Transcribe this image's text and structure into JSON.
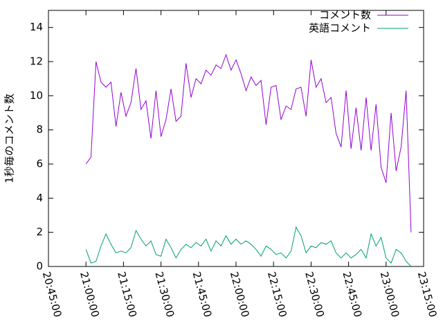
{
  "chart_data": {
    "type": "line",
    "ylabel": "1秒毎のコメント数",
    "x": [
      "21:00:00",
      "21:02:00",
      "21:04:00",
      "21:06:00",
      "21:08:00",
      "21:10:00",
      "21:12:00",
      "21:14:00",
      "21:16:00",
      "21:18:00",
      "21:20:00",
      "21:22:00",
      "21:24:00",
      "21:26:00",
      "21:28:00",
      "21:30:00",
      "21:32:00",
      "21:34:00",
      "21:36:00",
      "21:38:00",
      "21:40:00",
      "21:42:00",
      "21:44:00",
      "21:46:00",
      "21:48:00",
      "21:50:00",
      "21:52:00",
      "21:54:00",
      "21:56:00",
      "21:58:00",
      "22:00:00",
      "22:02:00",
      "22:04:00",
      "22:06:00",
      "22:08:00",
      "22:10:00",
      "22:12:00",
      "22:14:00",
      "22:16:00",
      "22:18:00",
      "22:20:00",
      "22:22:00",
      "22:24:00",
      "22:26:00",
      "22:28:00",
      "22:30:00",
      "22:32:00",
      "22:34:00",
      "22:36:00",
      "22:38:00",
      "22:40:00",
      "22:42:00",
      "22:44:00",
      "22:46:00",
      "22:48:00",
      "22:50:00",
      "22:52:00",
      "22:54:00",
      "22:56:00",
      "22:58:00",
      "23:00:00",
      "23:02:00",
      "23:04:00",
      "23:06:00",
      "23:08:00",
      "23:10:00"
    ],
    "series": [
      {
        "name": "コメント数",
        "color": "#9400d3",
        "values": [
          6.0,
          6.4,
          12.0,
          10.8,
          10.5,
          10.8,
          8.2,
          10.2,
          8.8,
          9.6,
          11.6,
          9.2,
          9.7,
          7.5,
          10.3,
          7.6,
          8.6,
          10.4,
          8.5,
          8.8,
          11.9,
          9.9,
          11.0,
          10.7,
          11.5,
          11.2,
          11.8,
          11.6,
          12.4,
          11.5,
          12.1,
          11.3,
          10.3,
          11.1,
          10.6,
          10.9,
          8.3,
          10.5,
          10.6,
          8.6,
          9.4,
          9.2,
          10.4,
          10.5,
          8.8,
          12.1,
          10.5,
          11.0,
          9.6,
          9.9,
          7.8,
          7.0,
          10.3,
          6.9,
          9.3,
          6.8,
          9.9,
          6.8,
          9.5,
          5.8,
          4.9,
          9.0,
          5.6,
          7.0,
          10.3,
          2.0
        ]
      },
      {
        "name": "英語コメント",
        "color": "#009e73",
        "values": [
          1.0,
          0.2,
          0.3,
          1.2,
          1.9,
          1.3,
          0.8,
          0.9,
          0.8,
          1.1,
          2.1,
          1.6,
          1.2,
          1.5,
          0.7,
          0.6,
          1.6,
          1.1,
          0.5,
          1.0,
          1.3,
          1.1,
          1.4,
          1.2,
          1.6,
          0.9,
          1.5,
          1.2,
          1.8,
          1.3,
          1.6,
          1.3,
          1.5,
          1.3,
          1.0,
          0.6,
          1.2,
          1.0,
          0.7,
          0.8,
          0.5,
          0.9,
          2.3,
          1.8,
          0.8,
          1.2,
          1.1,
          1.4,
          1.3,
          1.5,
          0.8,
          0.5,
          0.8,
          0.5,
          0.7,
          1.0,
          0.5,
          1.9,
          1.2,
          1.7,
          0.5,
          0.2,
          1.0,
          0.8,
          0.3,
          0.0
        ]
      }
    ],
    "xlim": [
      "20:45:00",
      "23:15:00"
    ],
    "xticks": [
      "20:45:00",
      "21:00:00",
      "21:15:00",
      "21:30:00",
      "21:45:00",
      "22:00:00",
      "22:15:00",
      "22:30:00",
      "22:45:00",
      "23:00:00",
      "23:15:00"
    ],
    "ylim": [
      0,
      15
    ],
    "yticks": [
      0,
      2,
      4,
      6,
      8,
      10,
      12,
      14
    ],
    "legend": "top-right"
  }
}
